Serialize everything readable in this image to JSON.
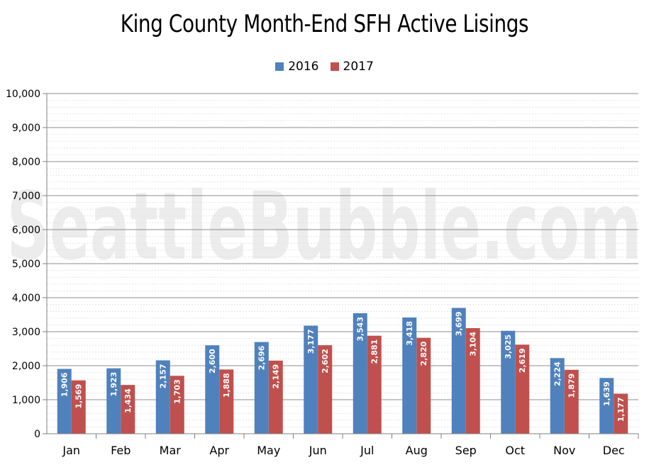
{
  "chart_data": {
    "type": "bar",
    "title": "King County Month-End SFH Active Lisings",
    "categories": [
      "Jan",
      "Feb",
      "Mar",
      "Apr",
      "May",
      "Jun",
      "Jul",
      "Aug",
      "Sep",
      "Oct",
      "Nov",
      "Dec"
    ],
    "series": [
      {
        "name": "2016",
        "color": "#4f81bd",
        "values": [
          1906,
          1923,
          2157,
          2600,
          2696,
          3177,
          3543,
          3418,
          3699,
          3025,
          2224,
          1639
        ]
      },
      {
        "name": "2017",
        "color": "#c0504d",
        "values": [
          1569,
          1434,
          1703,
          1888,
          2149,
          2602,
          2881,
          2820,
          3104,
          2619,
          1879,
          1177
        ]
      }
    ],
    "ylim": [
      0,
      10000
    ],
    "yticks": [
      "0",
      "1,000",
      "2,000",
      "3,000",
      "4,000",
      "5,000",
      "6,000",
      "7,000",
      "8,000",
      "9,000",
      "10,000"
    ],
    "xlabel": "",
    "ylabel": "",
    "grid": true,
    "legend_position": "top-center"
  },
  "watermark": "SeattleBubble.com"
}
